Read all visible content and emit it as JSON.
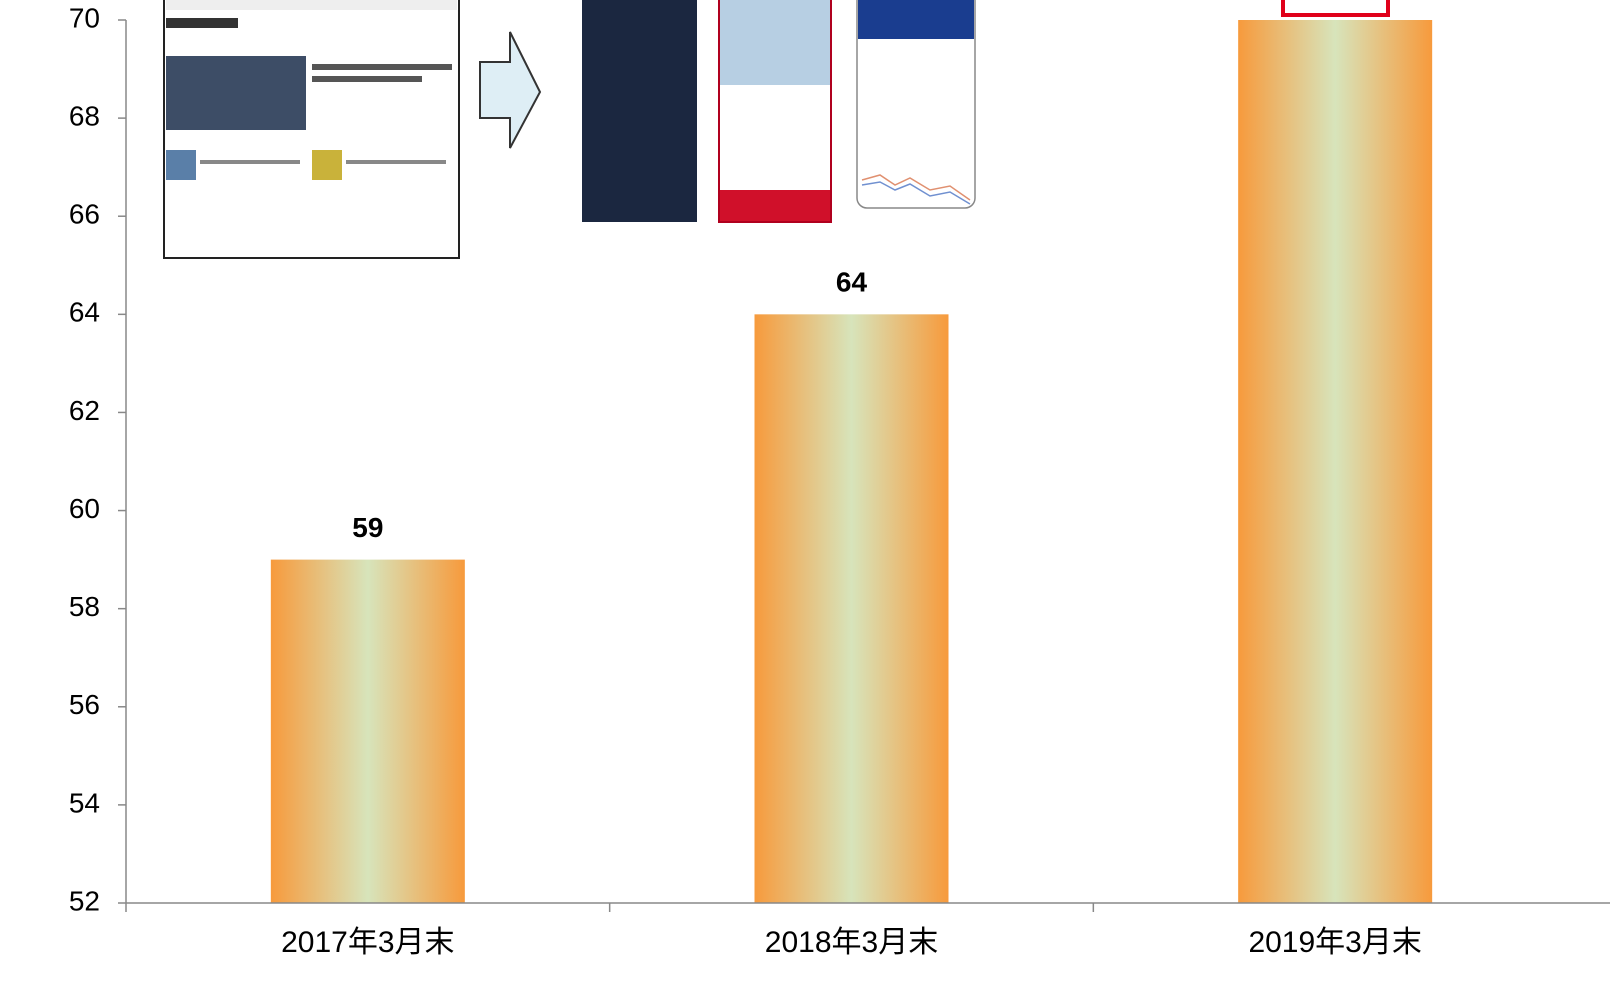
{
  "chart_data": {
    "type": "bar",
    "categories": [
      "2017年3月末",
      "2018年3月末",
      "2019年3月末"
    ],
    "values": [
      59,
      64,
      70
    ],
    "color": "#f79a3c",
    "ylim": [
      52,
      70
    ],
    "yticks": [
      52,
      54,
      56,
      58,
      60,
      62,
      64,
      66,
      68,
      70
    ]
  }
}
